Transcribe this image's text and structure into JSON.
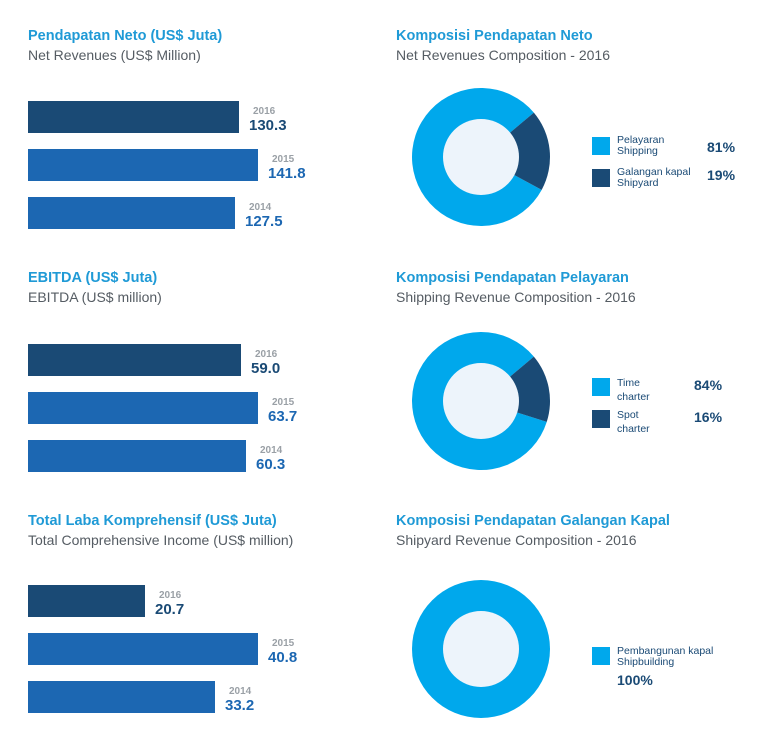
{
  "colors": {
    "title": "#1f9ad6",
    "subtitle": "#555c63",
    "bar_2016": "#1a4a75",
    "bar_prior": "#1c67b2",
    "year_label": "#9aa0a6",
    "donut_major": "#00a8ec",
    "donut_minor": "#1a4a75",
    "donut_center": "#edf4fb"
  },
  "net_revenues": {
    "title": "Pendapatan Neto (US$ Juta)",
    "subtitle": "Net Revenues (US$ Million)",
    "bars": [
      {
        "year": "2016",
        "label": "130.3"
      },
      {
        "year": "2015",
        "label": "141.8"
      },
      {
        "year": "2014",
        "label": "127.5"
      }
    ]
  },
  "ebitda": {
    "title": "EBITDA (US$ Juta)",
    "subtitle": "EBITDA (US$ million)",
    "bars": [
      {
        "year": "2016",
        "label": "59.0"
      },
      {
        "year": "2015",
        "label": "63.7"
      },
      {
        "year": "2014",
        "label": "60.3"
      }
    ]
  },
  "comprehensive_income": {
    "title": "Total Laba Komprehensif (US$ Juta)",
    "subtitle": "Total Comprehensive Income (US$ million)",
    "bars": [
      {
        "year": "2016",
        "label": "20.7"
      },
      {
        "year": "2015",
        "label": "40.8"
      },
      {
        "year": "2014",
        "label": "33.2"
      }
    ]
  },
  "revenue_composition": {
    "title": "Komposisi Pendapatan Neto",
    "subtitle": "Net Revenues Composition - 2016",
    "legend": [
      {
        "line1": "Pelayaran",
        "line2": "Shipping",
        "pct": "81%"
      },
      {
        "line1": "Galangan kapal",
        "line2": "Shipyard",
        "pct": "19%"
      }
    ]
  },
  "shipping_composition": {
    "title": "Komposisi Pendapatan Pelayaran",
    "subtitle": "Shipping Revenue Composition - 2016",
    "legend": [
      {
        "line1": "Time",
        "line2": "charter",
        "pct": "84%"
      },
      {
        "line1": "Spot",
        "line2": "charter",
        "pct": "16%"
      }
    ]
  },
  "shipyard_composition": {
    "title": "Komposisi Pendapatan Galangan Kapal",
    "subtitle": "Shipyard Revenue Composition - 2016",
    "legend": [
      {
        "line1": "Pembangunan kapal",
        "line2": "Shipbuilding",
        "pct": "100%"
      }
    ]
  },
  "chart_data": [
    {
      "type": "bar",
      "title": "Pendapatan Neto (US$ Juta)",
      "subtitle": "Net Revenues (US$ Million)",
      "categories": [
        "2016",
        "2015",
        "2014"
      ],
      "values": [
        130.3,
        141.8,
        127.5
      ],
      "orientation": "horizontal"
    },
    {
      "type": "bar",
      "title": "EBITDA (US$ Juta)",
      "subtitle": "EBITDA (US$ million)",
      "categories": [
        "2016",
        "2015",
        "2014"
      ],
      "values": [
        59.0,
        63.7,
        60.3
      ],
      "orientation": "horizontal"
    },
    {
      "type": "bar",
      "title": "Total Laba Komprehensif (US$ Juta)",
      "subtitle": "Total Comprehensive Income (US$ million)",
      "categories": [
        "2016",
        "2015",
        "2014"
      ],
      "values": [
        20.7,
        40.8,
        33.2
      ],
      "orientation": "horizontal"
    },
    {
      "type": "pie",
      "title": "Komposisi Pendapatan Neto",
      "subtitle": "Net Revenues Composition - 2016",
      "categories": [
        "Pelayaran Shipping",
        "Galangan kapal Shipyard"
      ],
      "values": [
        81,
        19
      ]
    },
    {
      "type": "pie",
      "title": "Komposisi Pendapatan Pelayaran",
      "subtitle": "Shipping Revenue Composition - 2016",
      "categories": [
        "Time charter",
        "Spot charter"
      ],
      "values": [
        84,
        16
      ]
    },
    {
      "type": "pie",
      "title": "Komposisi Pendapatan Galangan Kapal",
      "subtitle": "Shipyard Revenue Composition - 2016",
      "categories": [
        "Pembangunan kapal Shipbuilding"
      ],
      "values": [
        100
      ]
    }
  ]
}
